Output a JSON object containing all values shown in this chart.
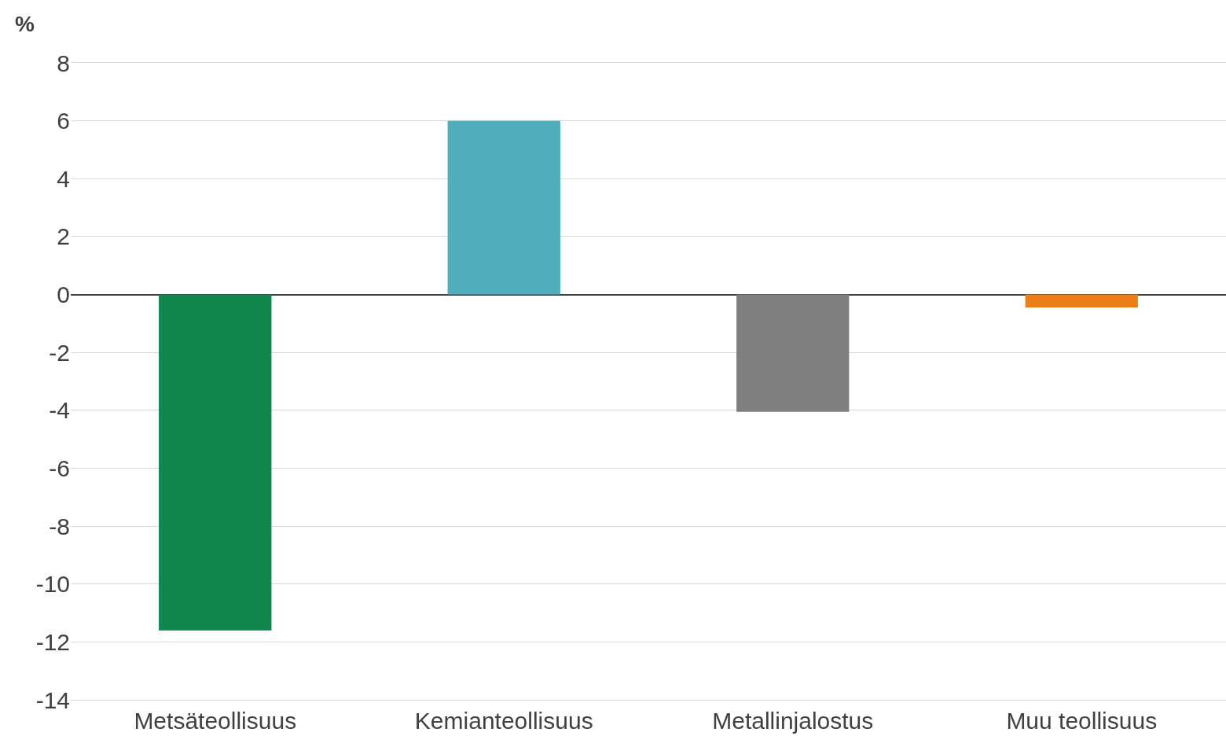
{
  "chart_data": {
    "type": "bar",
    "ylabel": "%",
    "categories": [
      "Metsäteollisuus",
      "Kemianteollisuus",
      "Metallinjalostus",
      "Muu teollisuus"
    ],
    "values": [
      -11.6,
      6.0,
      -4.05,
      -0.45
    ],
    "colors": [
      "#10854c",
      "#4fadbc",
      "#7f7f7f",
      "#ed7d17"
    ],
    "ylim": [
      -14,
      8
    ],
    "yticks": [
      -14,
      -12,
      -10,
      -8,
      -6,
      -4,
      -2,
      0,
      2,
      4,
      6,
      8
    ],
    "grid": "y"
  }
}
